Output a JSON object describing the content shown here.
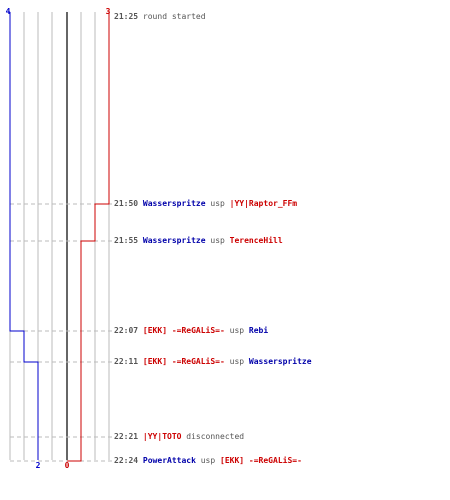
{
  "colors": {
    "blue_team": "#0000cc",
    "red_team": "#cc0000",
    "grid": "#bbbbbb",
    "center": "#666666",
    "guide": "#bbbbbb",
    "text": "#555555"
  },
  "scores": {
    "blue_start": "4",
    "red_start": "3",
    "blue_end": "2",
    "red_end": "0"
  },
  "events": [
    {
      "time": "21:25",
      "parts": [
        {
          "text": "round started",
          "style": "plain"
        }
      ]
    },
    {
      "time": "21:50",
      "parts": [
        {
          "text": "Wasserspritze",
          "style": "blue"
        },
        {
          "text": "usp",
          "style": "plain"
        },
        {
          "text": "|YY|Raptor_FFm",
          "style": "red"
        }
      ]
    },
    {
      "time": "21:55",
      "parts": [
        {
          "text": "Wasserspritze",
          "style": "blue"
        },
        {
          "text": "usp",
          "style": "plain"
        },
        {
          "text": "TerenceHill",
          "style": "red"
        }
      ]
    },
    {
      "time": "22:07",
      "parts": [
        {
          "text": "[EKK] -=ReGALiS=-",
          "style": "red"
        },
        {
          "text": "usp",
          "style": "plain"
        },
        {
          "text": "Rebi",
          "style": "blue"
        }
      ]
    },
    {
      "time": "22:11",
      "parts": [
        {
          "text": "[EKK] -=ReGALiS=-",
          "style": "red"
        },
        {
          "text": "usp",
          "style": "plain"
        },
        {
          "text": "Wasserspritze",
          "style": "blue"
        }
      ]
    },
    {
      "time": "22:21",
      "parts": [
        {
          "text": "|YY|TOTO",
          "style": "red"
        },
        {
          "text": "disconnected",
          "style": "plain"
        }
      ]
    },
    {
      "time": "22:24",
      "parts": [
        {
          "text": "PowerAttack",
          "style": "blue"
        },
        {
          "text": "usp",
          "style": "plain"
        },
        {
          "text": "[EKK] -=ReGALiS=-",
          "style": "red"
        }
      ]
    }
  ]
}
